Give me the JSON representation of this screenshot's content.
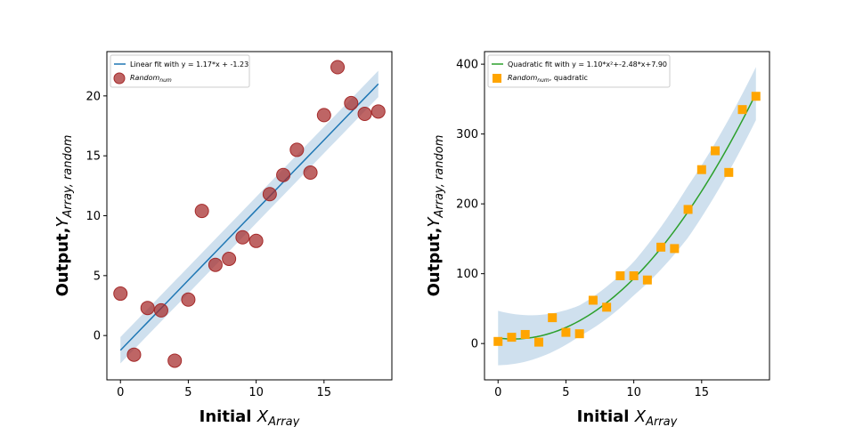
{
  "chart_data": [
    {
      "type": "scatter",
      "panel": "left",
      "xlim": [
        -1,
        20
      ],
      "ylim": [
        -3.7,
        23.7
      ],
      "xticks": [
        0,
        5,
        10,
        15
      ],
      "yticks": [
        0,
        5,
        10,
        15,
        20
      ],
      "xlabel": {
        "main": "Initial ",
        "var": "X",
        "sub": "Array"
      },
      "ylabel": {
        "main": "Output,",
        "var": "Y",
        "sub": "Array, random"
      },
      "legend_position": "upper-left",
      "colors": {
        "fit": "#1f77b4",
        "band": "#cfe0ee",
        "points": "#a52a2a"
      },
      "fit": {
        "kind": "linear",
        "coef": [
          1.17,
          -1.23
        ],
        "x_range": [
          0,
          19
        ],
        "band_halfwidth": 1.1
      },
      "legend": [
        {
          "kind": "line",
          "label": "Linear fit with y = 1.17*x + -1.23"
        },
        {
          "kind": "marker",
          "main": "Random",
          "sub": "num",
          "extra": ""
        }
      ],
      "points": [
        {
          "x": 0,
          "y": 3.5
        },
        {
          "x": 1,
          "y": -1.6
        },
        {
          "x": 2,
          "y": 2.3
        },
        {
          "x": 3,
          "y": 2.1
        },
        {
          "x": 4,
          "y": -2.1
        },
        {
          "x": 5,
          "y": 3.0
        },
        {
          "x": 6,
          "y": 10.4
        },
        {
          "x": 7,
          "y": 5.9
        },
        {
          "x": 8,
          "y": 6.4
        },
        {
          "x": 9,
          "y": 8.2
        },
        {
          "x": 10,
          "y": 7.9
        },
        {
          "x": 11,
          "y": 11.8
        },
        {
          "x": 12,
          "y": 13.4
        },
        {
          "x": 13,
          "y": 15.5
        },
        {
          "x": 14,
          "y": 13.6
        },
        {
          "x": 15,
          "y": 18.4
        },
        {
          "x": 16,
          "y": 22.4
        },
        {
          "x": 17,
          "y": 19.4
        },
        {
          "x": 18,
          "y": 18.5
        },
        {
          "x": 19,
          "y": 18.7
        }
      ]
    },
    {
      "type": "scatter",
      "panel": "right",
      "xlim": [
        -1,
        20
      ],
      "ylim": [
        -52,
        418
      ],
      "xticks": [
        0,
        5,
        10,
        15
      ],
      "yticks": [
        0,
        100,
        200,
        300,
        400
      ],
      "xlabel": {
        "main": "Initial ",
        "var": "X",
        "sub": "Array"
      },
      "ylabel": {
        "main": "Output,",
        "var": "Y",
        "sub": "Array, random"
      },
      "legend_position": "upper-left",
      "colors": {
        "fit": "#2ca02c",
        "band": "#cfe0ee",
        "points": "#ffa500"
      },
      "fit": {
        "kind": "quadratic",
        "coef": [
          1.1,
          -2.48,
          7.9
        ],
        "x_range": [
          0,
          19
        ],
        "band_samples": [
          [
            0,
            39
          ],
          [
            6,
            22
          ],
          [
            10,
            24
          ],
          [
            14,
            37
          ],
          [
            19,
            38
          ]
        ]
      },
      "legend": [
        {
          "kind": "line",
          "label": "Quadratic fit with y = 1.10*x²+-2.48*x+7.90"
        },
        {
          "kind": "marker",
          "main": "Random",
          "sub": "num",
          "extra": ", quadratic"
        }
      ],
      "points": [
        {
          "x": 0,
          "y": 3
        },
        {
          "x": 1,
          "y": 9
        },
        {
          "x": 2,
          "y": 13
        },
        {
          "x": 3,
          "y": 2
        },
        {
          "x": 4,
          "y": 37
        },
        {
          "x": 5,
          "y": 16
        },
        {
          "x": 6,
          "y": 14
        },
        {
          "x": 7,
          "y": 62
        },
        {
          "x": 8,
          "y": 52
        },
        {
          "x": 9,
          "y": 97
        },
        {
          "x": 10,
          "y": 97
        },
        {
          "x": 11,
          "y": 91
        },
        {
          "x": 12,
          "y": 138
        },
        {
          "x": 13,
          "y": 136
        },
        {
          "x": 14,
          "y": 192
        },
        {
          "x": 15,
          "y": 249
        },
        {
          "x": 16,
          "y": 276
        },
        {
          "x": 17,
          "y": 245
        },
        {
          "x": 18,
          "y": 335
        },
        {
          "x": 19,
          "y": 354
        }
      ]
    }
  ]
}
